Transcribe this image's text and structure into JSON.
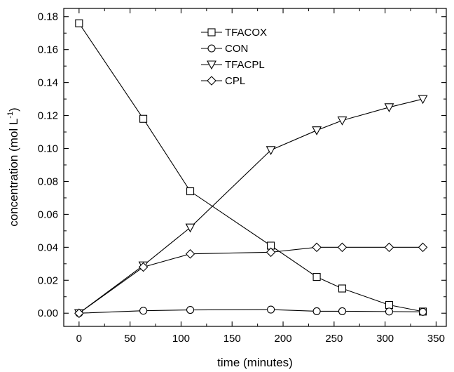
{
  "chart_data": {
    "type": "line",
    "xlabel": "time (minutes)",
    "ylabel": "concentration (mol L",
    "ylabel_sup": "-1",
    "ylabel_close": ")",
    "xlim": [
      -15,
      360
    ],
    "ylim": [
      -0.008,
      0.185
    ],
    "xticks": [
      0,
      50,
      100,
      150,
      200,
      250,
      300,
      350
    ],
    "yticks": [
      0.0,
      0.02,
      0.04,
      0.06,
      0.08,
      0.1,
      0.12,
      0.14,
      0.16,
      0.18
    ],
    "ytick_labels": [
      "0.00",
      "0.02",
      "0.04",
      "0.06",
      "0.08",
      "0.10",
      "0.12",
      "0.14",
      "0.16",
      "0.18"
    ],
    "xtick_labels": [
      "0",
      "50",
      "100",
      "150",
      "200",
      "250",
      "300",
      "350"
    ],
    "legend_position": "top-center",
    "grid": false,
    "series": [
      {
        "name": "TFACOX",
        "marker": "square",
        "x": [
          0,
          63,
          109,
          188,
          233,
          258,
          304,
          337
        ],
        "y": [
          0.176,
          0.118,
          0.074,
          0.041,
          0.022,
          0.015,
          0.005,
          0.001
        ]
      },
      {
        "name": "CON",
        "marker": "circle",
        "x": [
          0,
          63,
          109,
          188,
          233,
          258,
          304,
          337
        ],
        "y": [
          0.0,
          0.0015,
          0.002,
          0.0022,
          0.0012,
          0.0012,
          0.001,
          0.0008
        ]
      },
      {
        "name": "TFACPL",
        "marker": "triangle-down",
        "x": [
          0,
          63,
          109,
          188,
          233,
          258,
          304,
          337
        ],
        "y": [
          0.0,
          0.029,
          0.052,
          0.099,
          0.111,
          0.117,
          0.125,
          0.13
        ]
      },
      {
        "name": "CPL",
        "marker": "diamond",
        "x": [
          0,
          63,
          109,
          188,
          233,
          258,
          304,
          337
        ],
        "y": [
          0.0,
          0.028,
          0.036,
          0.037,
          0.04,
          0.04,
          0.04,
          0.04
        ]
      }
    ]
  }
}
